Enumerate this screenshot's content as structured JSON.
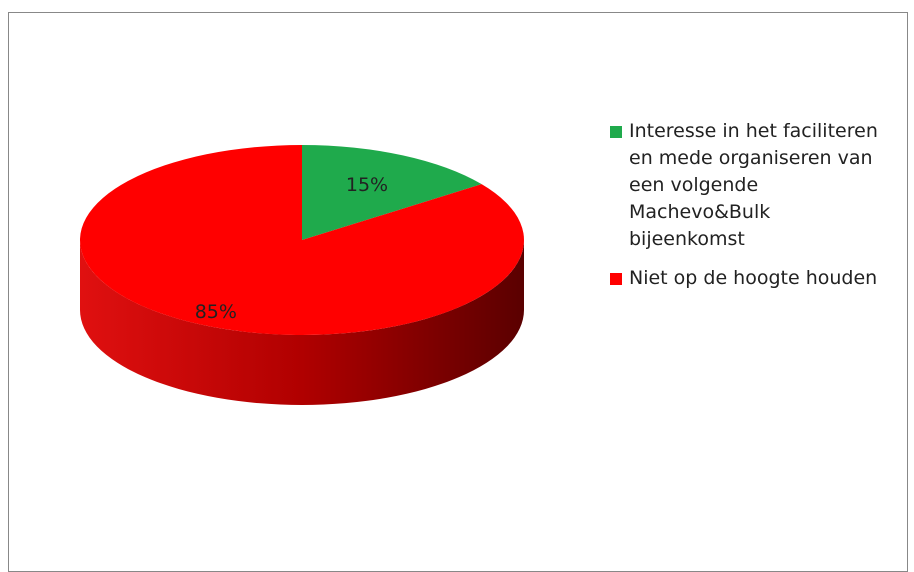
{
  "chart_data": {
    "type": "pie",
    "categories": [
      "Interesse in het faciliteren en mede organiseren van een volgende Machevo&Bulk bijeenkomst",
      "Niet op de hoogte houden"
    ],
    "values": [
      15,
      85
    ],
    "value_labels": [
      "15%",
      "85%"
    ],
    "colors": [
      "#1faa4c",
      "#ff0000"
    ],
    "legend": "right"
  }
}
